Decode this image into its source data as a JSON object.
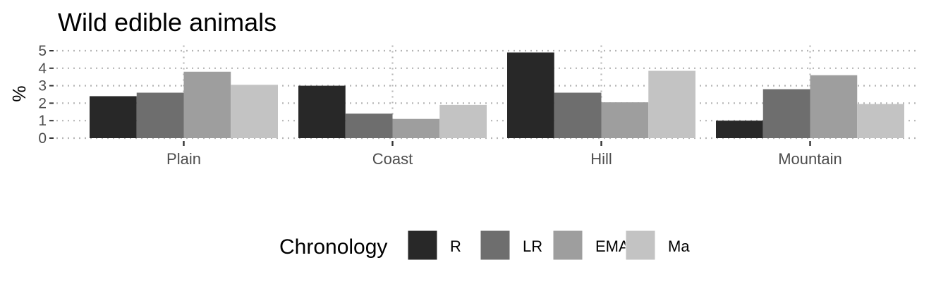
{
  "chart_data": {
    "type": "bar",
    "title": "Wild edible animals",
    "xlabel": "",
    "ylabel": "%",
    "categories": [
      "Plain",
      "Coast",
      "Hill",
      "Mountain"
    ],
    "ylim": [
      0,
      5
    ],
    "yticks": [
      0,
      1,
      2,
      3,
      4,
      5
    ],
    "grid": true,
    "legend": {
      "title": "Chronology",
      "placement": "bottom"
    },
    "series": [
      {
        "name": "R",
        "color": "#282828",
        "values": [
          2.4,
          3.0,
          4.9,
          1.0
        ]
      },
      {
        "name": "LR",
        "color": "#6e6e6e",
        "values": [
          2.6,
          1.4,
          2.6,
          2.8
        ]
      },
      {
        "name": "EMA",
        "color": "#9e9e9e",
        "values": [
          3.8,
          1.1,
          2.05,
          3.6
        ]
      },
      {
        "name": "Ma",
        "color": "#c3c3c3",
        "values": [
          3.05,
          1.9,
          3.85,
          1.95
        ]
      }
    ]
  }
}
